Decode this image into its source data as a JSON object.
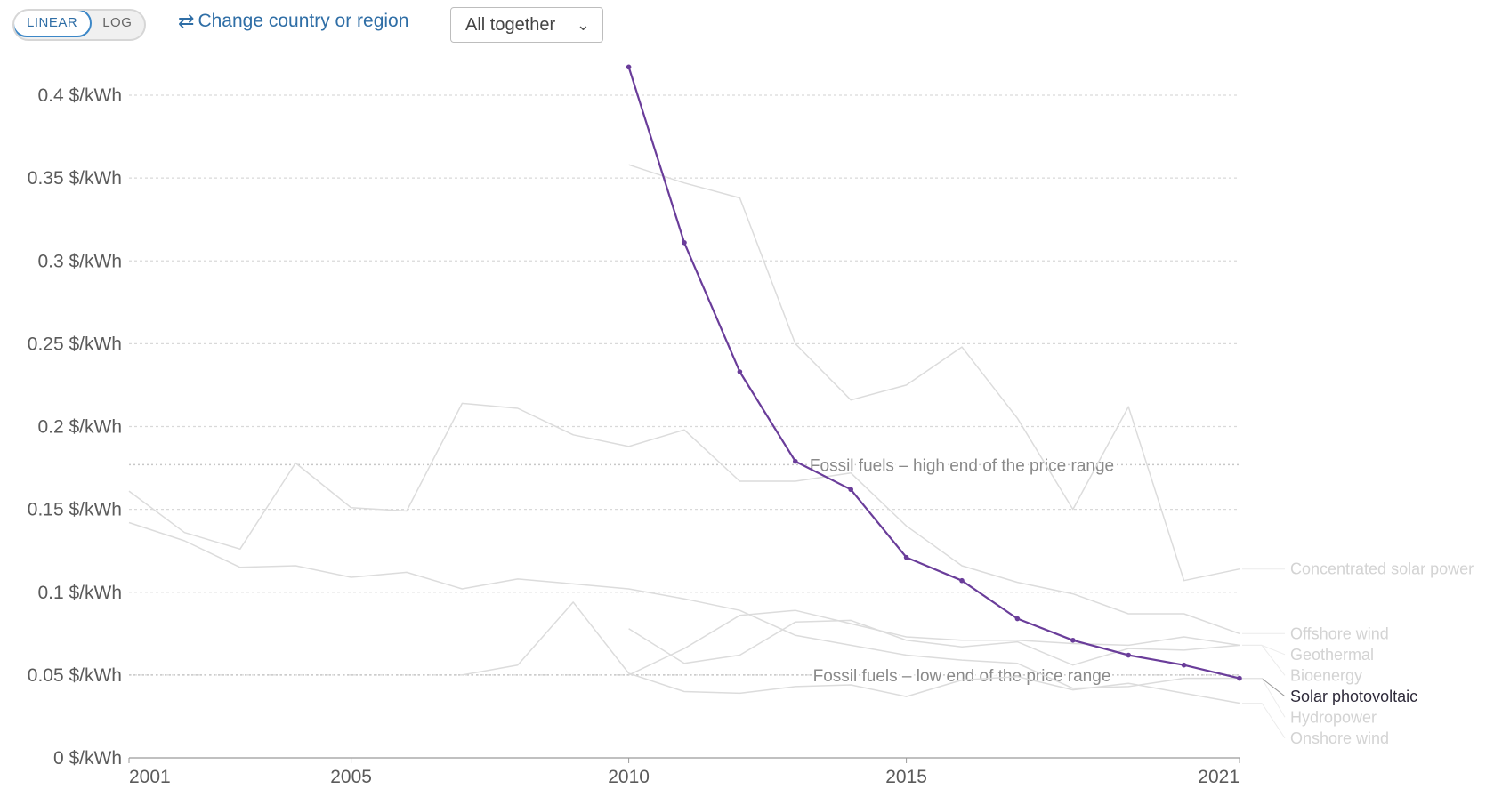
{
  "controls": {
    "scale_options": [
      "LINEAR",
      "LOG"
    ],
    "scale_selected": "LINEAR",
    "change_region_label": "Change country or region",
    "change_region_icon": "swap-arrows-icon",
    "facet_select": "All together",
    "facet_select_icon": "chevron-down-icon"
  },
  "chart_data": {
    "type": "line",
    "title": "",
    "xlabel": "",
    "ylabel": "",
    "xlim": [
      2001,
      2021
    ],
    "ylim": [
      0,
      0.4
    ],
    "x_ticks": [
      2001,
      2005,
      2010,
      2015,
      2021
    ],
    "y_ticks": [
      0,
      0.05,
      0.1,
      0.15,
      0.2,
      0.25,
      0.3,
      0.35,
      0.4
    ],
    "y_tick_labels": [
      "0 $/kWh",
      "0.05 $/kWh",
      "0.1 $/kWh",
      "0.15 $/kWh",
      "0.2 $/kWh",
      "0.25 $/kWh",
      "0.3 $/kWh",
      "0.35 $/kWh",
      "0.4 $/kWh"
    ],
    "grid": "horizontal dotted",
    "legend": "line-end labels at right",
    "highlighted_series": "Solar photovoltaic",
    "highlight_color": "#6a3d9a",
    "muted_color": "#dcdcdc",
    "series": [
      {
        "name": "Solar photovoltaic",
        "x": [
          2010,
          2011,
          2012,
          2013,
          2014,
          2015,
          2016,
          2017,
          2018,
          2019,
          2020,
          2021
        ],
        "values": [
          0.417,
          0.311,
          0.233,
          0.179,
          0.162,
          0.121,
          0.107,
          0.084,
          0.071,
          0.062,
          0.056,
          0.048
        ]
      },
      {
        "name": "Concentrated solar power",
        "x": [
          2010,
          2011,
          2012,
          2013,
          2014,
          2015,
          2016,
          2017,
          2018,
          2019,
          2020,
          2021
        ],
        "values": [
          0.358,
          0.347,
          0.338,
          0.25,
          0.216,
          0.225,
          0.248,
          0.205,
          0.15,
          0.212,
          0.107,
          0.114
        ]
      },
      {
        "name": "Offshore wind",
        "x": [
          2001,
          2002,
          2003,
          2004,
          2005,
          2006,
          2007,
          2008,
          2009,
          2010,
          2011,
          2012,
          2013,
          2014,
          2015,
          2016,
          2017,
          2018,
          2019,
          2020,
          2021
        ],
        "values": [
          0.161,
          0.136,
          0.126,
          0.178,
          0.151,
          0.149,
          0.214,
          0.211,
          0.195,
          0.188,
          0.198,
          0.167,
          0.167,
          0.172,
          0.14,
          0.116,
          0.106,
          0.099,
          0.087,
          0.087,
          0.075
        ]
      },
      {
        "name": "Geothermal",
        "x": [
          2010,
          2011,
          2012,
          2013,
          2014,
          2015,
          2016,
          2017,
          2018,
          2019,
          2020,
          2021
        ],
        "values": [
          0.05,
          0.066,
          0.086,
          0.089,
          0.081,
          0.073,
          0.071,
          0.071,
          0.069,
          0.068,
          0.073,
          0.068
        ]
      },
      {
        "name": "Bioenergy",
        "x": [
          2010,
          2011,
          2012,
          2013,
          2014,
          2015,
          2016,
          2017,
          2018,
          2019,
          2020,
          2021
        ],
        "values": [
          0.078,
          0.057,
          0.062,
          0.082,
          0.083,
          0.071,
          0.067,
          0.07,
          0.056,
          0.066,
          0.065,
          0.068
        ]
      },
      {
        "name": "Hydropower",
        "x": [
          2001,
          2002,
          2003,
          2004,
          2005,
          2006,
          2007,
          2008,
          2009,
          2010,
          2011,
          2012,
          2013,
          2014,
          2015,
          2016,
          2017,
          2018,
          2019,
          2020,
          2021
        ],
        "values": [
          0.142,
          0.131,
          0.115,
          0.116,
          0.109,
          0.112,
          0.102,
          0.108,
          0.105,
          0.102,
          0.096,
          0.089,
          0.074,
          0.068,
          0.062,
          0.059,
          0.057,
          0.042,
          0.043,
          0.048,
          0.048
        ]
      },
      {
        "name": "Onshore wind",
        "x": [
          2007,
          2008,
          2009,
          2010,
          2011,
          2012,
          2013,
          2014,
          2015,
          2016,
          2017,
          2018,
          2019,
          2020,
          2021
        ],
        "values": [
          0.05,
          0.056,
          0.094,
          0.051,
          0.04,
          0.039,
          0.043,
          0.044,
          0.037,
          0.047,
          0.049,
          0.041,
          0.045,
          0.039,
          0.033
        ]
      }
    ],
    "reference_lines": [
      {
        "label": "Fossil fuels – high end of the price range",
        "value": 0.177
      },
      {
        "label": "Fossil fuels – low end of the price range",
        "value": 0.05
      }
    ]
  }
}
